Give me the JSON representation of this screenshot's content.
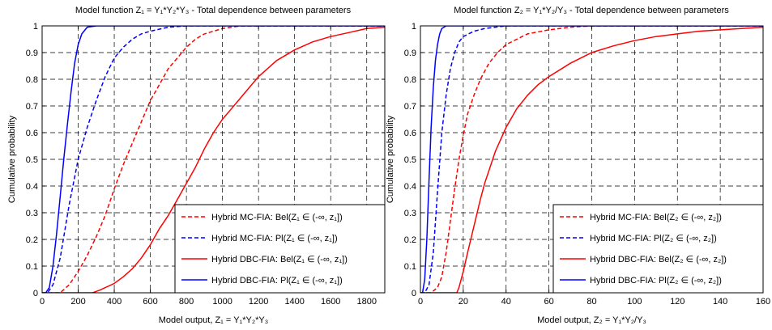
{
  "chart_data": [
    {
      "type": "line",
      "title": "Model function Z₁ = Y₁*Y₂*Y₃ - Total dependence between parameters",
      "xlabel": "Model output, Z₁ = Y₁*Y₂*Y₃",
      "ylabel": "Cumulative probability",
      "xlim": [
        0,
        1900
      ],
      "ylim": [
        0,
        1
      ],
      "xticks": [
        0,
        200,
        400,
        600,
        800,
        1000,
        1200,
        1400,
        1600,
        1800
      ],
      "yticks": [
        0,
        0.1,
        0.2,
        0.3,
        0.4,
        0.5,
        0.6,
        0.7,
        0.8,
        0.9,
        1
      ],
      "grid": "on",
      "legend_position": "bottom-right",
      "series": [
        {
          "name": "Hybrid MC-FIA: Bel(Z₁ ∈ (-∞, z₁])",
          "color": "#ff0000",
          "dash": "dashed",
          "points": [
            [
              0,
              0
            ],
            [
              100,
              0
            ],
            [
              150,
              0.03
            ],
            [
              200,
              0.08
            ],
            [
              250,
              0.14
            ],
            [
              300,
              0.21
            ],
            [
              350,
              0.29
            ],
            [
              400,
              0.39
            ],
            [
              450,
              0.48
            ],
            [
              500,
              0.56
            ],
            [
              550,
              0.64
            ],
            [
              600,
              0.72
            ],
            [
              650,
              0.78
            ],
            [
              700,
              0.84
            ],
            [
              750,
              0.88
            ],
            [
              800,
              0.92
            ],
            [
              850,
              0.95
            ],
            [
              900,
              0.97
            ],
            [
              1000,
              0.99
            ],
            [
              1100,
              1.0
            ],
            [
              1900,
              1.0
            ]
          ]
        },
        {
          "name": "Hybrid MC-FIA: Pl(Z₁ ∈ (-∞, z₁])",
          "color": "#0000ff",
          "dash": "dashed",
          "points": [
            [
              0,
              0
            ],
            [
              30,
              0
            ],
            [
              60,
              0.03
            ],
            [
              100,
              0.13
            ],
            [
              150,
              0.33
            ],
            [
              200,
              0.5
            ],
            [
              250,
              0.62
            ],
            [
              300,
              0.72
            ],
            [
              350,
              0.81
            ],
            [
              400,
              0.88
            ],
            [
              450,
              0.92
            ],
            [
              500,
              0.95
            ],
            [
              550,
              0.97
            ],
            [
              600,
              0.98
            ],
            [
              700,
              0.995
            ],
            [
              800,
              1.0
            ],
            [
              1900,
              1.0
            ]
          ]
        },
        {
          "name": "Hybrid DBC-FIA: Bel(Z₁ ∈ (-∞, z₁])",
          "color": "#ff0000",
          "dash": "solid",
          "points": [
            [
              0,
              0
            ],
            [
              280,
              0
            ],
            [
              320,
              0.01
            ],
            [
              400,
              0.035
            ],
            [
              450,
              0.06
            ],
            [
              500,
              0.09
            ],
            [
              550,
              0.13
            ],
            [
              600,
              0.18
            ],
            [
              650,
              0.24
            ],
            [
              700,
              0.29
            ],
            [
              750,
              0.35
            ],
            [
              800,
              0.41
            ],
            [
              850,
              0.47
            ],
            [
              900,
              0.54
            ],
            [
              950,
              0.6
            ],
            [
              1000,
              0.65
            ],
            [
              1050,
              0.69
            ],
            [
              1100,
              0.73
            ],
            [
              1150,
              0.77
            ],
            [
              1200,
              0.81
            ],
            [
              1250,
              0.84
            ],
            [
              1300,
              0.87
            ],
            [
              1350,
              0.89
            ],
            [
              1400,
              0.91
            ],
            [
              1500,
              0.94
            ],
            [
              1600,
              0.96
            ],
            [
              1700,
              0.975
            ],
            [
              1800,
              0.99
            ],
            [
              1900,
              0.995
            ]
          ]
        },
        {
          "name": "Hybrid DBC-FIA: Pl(Z₁ ∈ (-∞, z₁])",
          "color": "#0000ff",
          "dash": "solid",
          "points": [
            [
              0,
              0
            ],
            [
              20,
              0
            ],
            [
              40,
              0.02
            ],
            [
              60,
              0.1
            ],
            [
              80,
              0.22
            ],
            [
              100,
              0.36
            ],
            [
              120,
              0.5
            ],
            [
              140,
              0.63
            ],
            [
              160,
              0.75
            ],
            [
              180,
              0.86
            ],
            [
              200,
              0.93
            ],
            [
              220,
              0.97
            ],
            [
              250,
              0.995
            ],
            [
              300,
              1.0
            ],
            [
              1900,
              1.0
            ]
          ]
        }
      ]
    },
    {
      "type": "line",
      "title": "Model function Z₂ = Y₁*Y₂/Y₃ - Total dependence between parameters",
      "xlabel": "Model output, Z₂ = Y₁*Y₂/Y₃",
      "ylabel": "Cumulative probability",
      "xlim": [
        0,
        160
      ],
      "ylim": [
        0,
        1
      ],
      "xticks": [
        0,
        20,
        40,
        60,
        80,
        100,
        120,
        140,
        160
      ],
      "yticks": [
        0,
        0.1,
        0.2,
        0.3,
        0.4,
        0.5,
        0.6,
        0.7,
        0.8,
        0.9,
        1
      ],
      "grid": "on",
      "legend_position": "bottom-right",
      "series": [
        {
          "name": "Hybrid MC-FIA: Bel(Z₂ ∈ (-∞, z₂])",
          "color": "#ff0000",
          "dash": "dashed",
          "points": [
            [
              0,
              0
            ],
            [
              5,
              0
            ],
            [
              8,
              0.02
            ],
            [
              10,
              0.06
            ],
            [
              12,
              0.15
            ],
            [
              14,
              0.27
            ],
            [
              16,
              0.39
            ],
            [
              18,
              0.5
            ],
            [
              20,
              0.59
            ],
            [
              22,
              0.67
            ],
            [
              25,
              0.74
            ],
            [
              28,
              0.8
            ],
            [
              32,
              0.86
            ],
            [
              36,
              0.9
            ],
            [
              40,
              0.93
            ],
            [
              45,
              0.95
            ],
            [
              50,
              0.97
            ],
            [
              60,
              0.985
            ],
            [
              70,
              0.995
            ],
            [
              80,
              1.0
            ],
            [
              160,
              1.0
            ]
          ]
        },
        {
          "name": "Hybrid MC-FIA: Pl(Z₂ ∈ (-∞, z₂])",
          "color": "#0000ff",
          "dash": "dashed",
          "points": [
            [
              0,
              0
            ],
            [
              2,
              0
            ],
            [
              4,
              0.03
            ],
            [
              6,
              0.15
            ],
            [
              8,
              0.38
            ],
            [
              10,
              0.6
            ],
            [
              12,
              0.74
            ],
            [
              14,
              0.84
            ],
            [
              16,
              0.9
            ],
            [
              18,
              0.94
            ],
            [
              20,
              0.96
            ],
            [
              25,
              0.98
            ],
            [
              30,
              0.99
            ],
            [
              40,
              1.0
            ],
            [
              160,
              1.0
            ]
          ]
        },
        {
          "name": "Hybrid DBC-FIA: Bel(Z₂ ∈ (-∞, z₂])",
          "color": "#ff0000",
          "dash": "solid",
          "points": [
            [
              0,
              0
            ],
            [
              17,
              0
            ],
            [
              18,
              0.02
            ],
            [
              20,
              0.08
            ],
            [
              22,
              0.15
            ],
            [
              25,
              0.25
            ],
            [
              28,
              0.35
            ],
            [
              30,
              0.41
            ],
            [
              35,
              0.53
            ],
            [
              40,
              0.62
            ],
            [
              45,
              0.69
            ],
            [
              50,
              0.74
            ],
            [
              55,
              0.78
            ],
            [
              60,
              0.81
            ],
            [
              70,
              0.86
            ],
            [
              80,
              0.9
            ],
            [
              90,
              0.925
            ],
            [
              100,
              0.945
            ],
            [
              110,
              0.96
            ],
            [
              120,
              0.97
            ],
            [
              130,
              0.98
            ],
            [
              140,
              0.985
            ],
            [
              150,
              0.99
            ],
            [
              160,
              0.995
            ]
          ]
        },
        {
          "name": "Hybrid DBC-FIA: Pl(Z₂ ∈ (-∞, z₂])",
          "color": "#0000ff",
          "dash": "solid",
          "points": [
            [
              0,
              0
            ],
            [
              1,
              0
            ],
            [
              2,
              0.05
            ],
            [
              3,
              0.2
            ],
            [
              4,
              0.42
            ],
            [
              5,
              0.62
            ],
            [
              6,
              0.77
            ],
            [
              7,
              0.87
            ],
            [
              8,
              0.93
            ],
            [
              9,
              0.97
            ],
            [
              10,
              0.99
            ],
            [
              12,
              1.0
            ],
            [
              160,
              1.0
            ]
          ]
        }
      ]
    }
  ]
}
